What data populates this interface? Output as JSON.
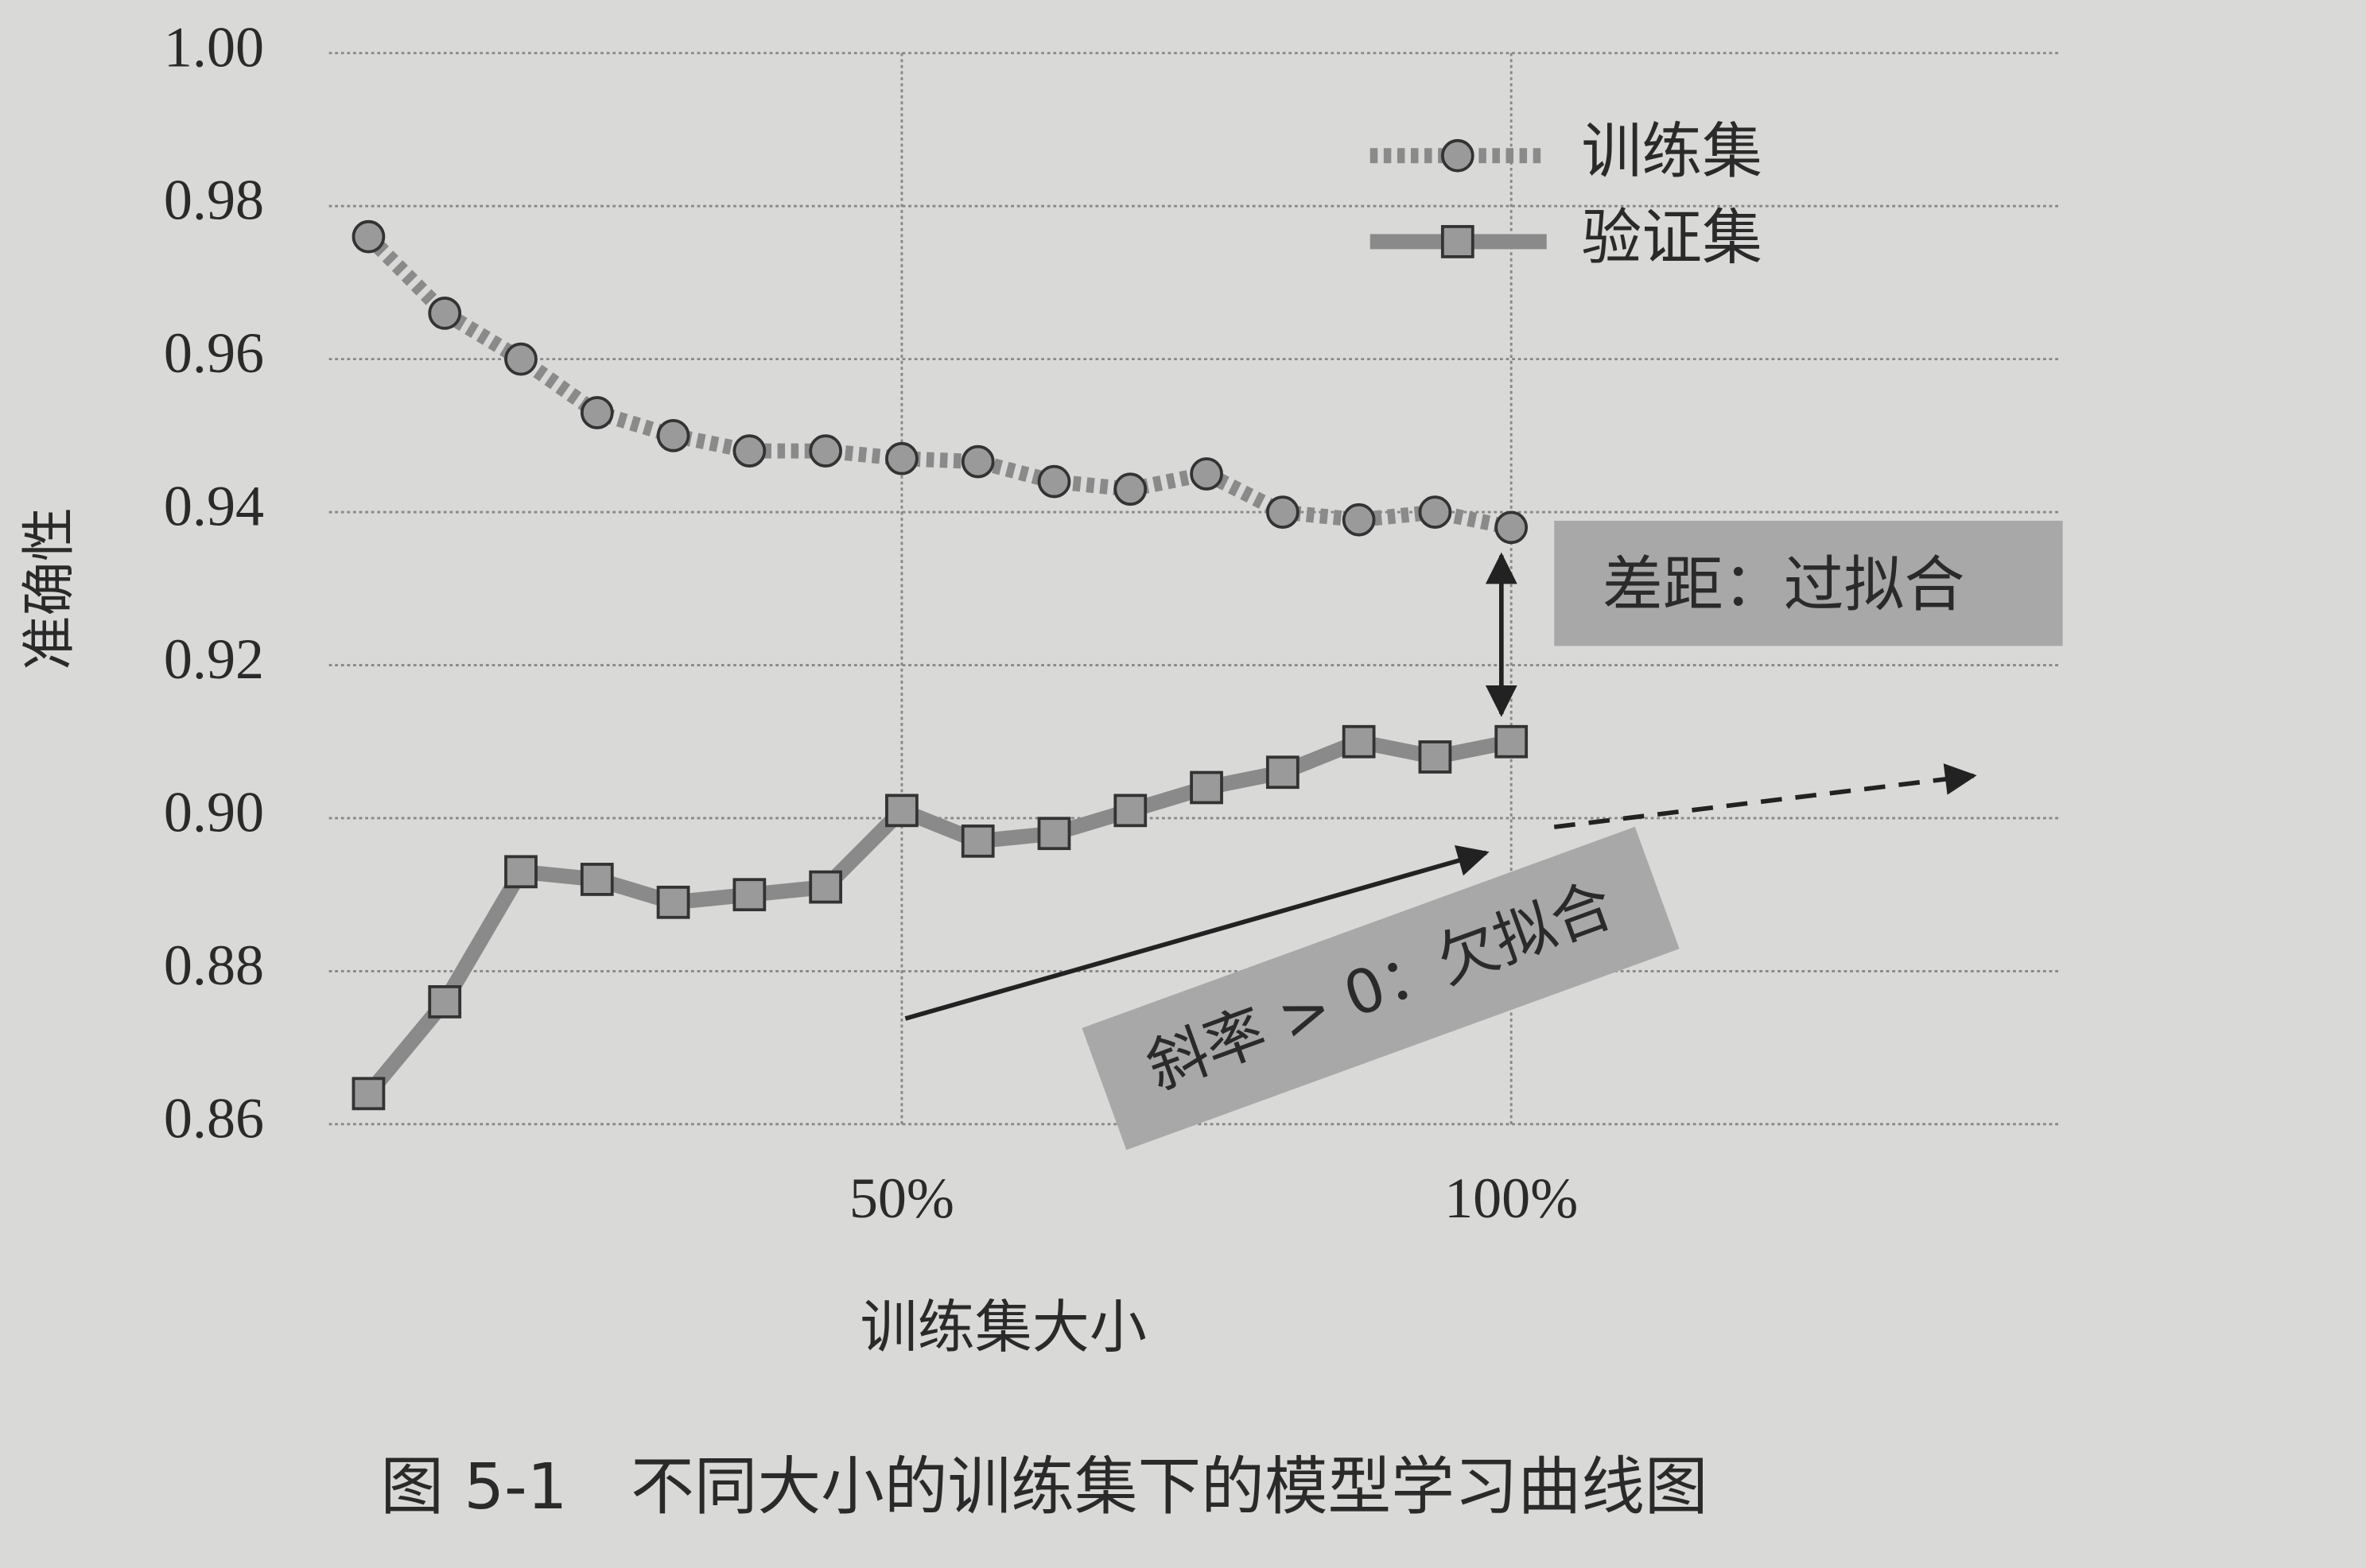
{
  "chart_data": {
    "type": "line",
    "x": [
      6.25,
      12.5,
      18.75,
      25,
      31.25,
      37.5,
      43.75,
      50,
      56.25,
      62.5,
      68.75,
      75,
      81.25,
      87.5,
      93.75,
      100
    ],
    "series": [
      {
        "name": "训练集",
        "color": "#8a8a8a",
        "values": [
          0.976,
          0.966,
          0.96,
          0.953,
          0.95,
          0.948,
          0.948,
          0.947,
          0.9466,
          0.944,
          0.943,
          0.945,
          0.94,
          0.939,
          0.94,
          0.938
        ]
      },
      {
        "name": "验证集",
        "color": "#8a8a8a",
        "values": [
          0.864,
          0.876,
          0.893,
          0.892,
          0.889,
          0.89,
          0.891,
          0.901,
          0.897,
          0.898,
          0.901,
          0.904,
          0.906,
          0.91,
          0.908,
          0.91
        ]
      }
    ],
    "xlabel": "训练集大小",
    "ylabel": "准确性",
    "xlim": [
      3,
      145
    ],
    "xticks": [
      {
        "value": 50,
        "label": "50%"
      },
      {
        "value": 100,
        "label": "100%"
      }
    ],
    "ylim": [
      0.86,
      1.0
    ],
    "yticks": [
      0.86,
      0.88,
      {
        "value": 0.9,
        "label": "0.90"
      },
      0.92,
      0.94,
      0.96,
      0.98,
      {
        "value": 1.0,
        "label": "1.00"
      }
    ],
    "grid": true,
    "legend": "upper right",
    "annotations": [
      "差距：过拟合",
      "斜率 > 0：欠拟合"
    ],
    "caption": "图 5-1　不同大小的训练集下的模型学习曲线图"
  }
}
